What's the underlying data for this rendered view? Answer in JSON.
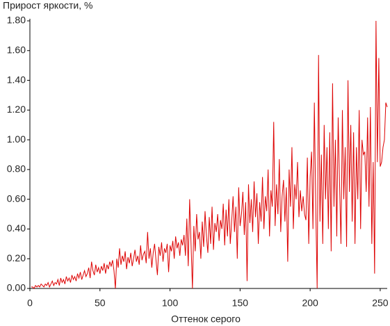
{
  "chart_data": {
    "type": "line",
    "title": "Прирост яркости, %",
    "x_label": "Оттенок серого",
    "x": [
      1,
      2,
      3,
      4,
      5,
      6,
      7,
      8,
      9,
      10,
      11,
      12,
      13,
      14,
      15,
      16,
      17,
      18,
      19,
      20,
      21,
      22,
      23,
      24,
      25,
      26,
      27,
      28,
      29,
      30,
      31,
      32,
      33,
      34,
      35,
      36,
      37,
      38,
      39,
      40,
      41,
      42,
      43,
      44,
      45,
      46,
      47,
      48,
      49,
      50,
      51,
      52,
      53,
      54,
      55,
      56,
      57,
      58,
      59,
      60,
      61,
      62,
      63,
      64,
      65,
      66,
      67,
      68,
      69,
      70,
      71,
      72,
      73,
      74,
      75,
      76,
      77,
      78,
      79,
      80,
      81,
      82,
      83,
      84,
      85,
      86,
      87,
      88,
      89,
      90,
      91,
      92,
      93,
      94,
      95,
      96,
      97,
      98,
      99,
      100,
      101,
      102,
      103,
      104,
      105,
      106,
      107,
      108,
      109,
      110,
      111,
      112,
      113,
      114,
      115,
      116,
      117,
      118,
      119,
      120,
      121,
      122,
      123,
      124,
      125,
      126,
      127,
      128,
      129,
      130,
      131,
      132,
      133,
      134,
      135,
      136,
      137,
      138,
      139,
      140,
      141,
      142,
      143,
      144,
      145,
      146,
      147,
      148,
      149,
      150,
      151,
      152,
      153,
      154,
      155,
      156,
      157,
      158,
      159,
      160,
      161,
      162,
      163,
      164,
      165,
      166,
      167,
      168,
      169,
      170,
      171,
      172,
      173,
      174,
      175,
      176,
      177,
      178,
      179,
      180,
      181,
      182,
      183,
      184,
      185,
      186,
      187,
      188,
      189,
      190,
      191,
      192,
      193,
      194,
      195,
      196,
      197,
      198,
      199,
      200,
      201,
      202,
      203,
      204,
      205,
      206,
      207,
      208,
      209,
      210,
      211,
      212,
      213,
      214,
      215,
      216,
      217,
      218,
      219,
      220,
      221,
      222,
      223,
      224,
      225,
      226,
      227,
      228,
      229,
      230,
      231,
      232,
      233,
      234,
      235,
      236,
      237,
      238,
      239,
      240,
      241,
      242,
      243,
      244,
      245,
      246,
      247,
      248,
      249,
      250,
      251,
      252,
      253,
      254,
      255
    ],
    "series": [
      {
        "color": "#dd0000",
        "values": [
          0.01,
          0.01,
          0,
          0.02,
          0.01,
          0.02,
          0.01,
          0.03,
          0.02,
          0.01,
          0.03,
          0.02,
          0.04,
          0.01,
          0.03,
          0.05,
          0.02,
          0.04,
          0.03,
          0.06,
          0.02,
          0.07,
          0.04,
          0.06,
          0.03,
          0.08,
          0.05,
          0.07,
          0.04,
          0.09,
          0.06,
          0.08,
          0.05,
          0.1,
          0.07,
          0.11,
          0.06,
          0.09,
          0.12,
          0.08,
          0.1,
          0.14,
          0.07,
          0.18,
          0.12,
          0.09,
          0.16,
          0.11,
          0.14,
          0.1,
          0.15,
          0.12,
          0.17,
          0.1,
          0.16,
          0.13,
          0.18,
          0.15,
          0.19,
          0.12,
          0,
          0.2,
          0.14,
          0.27,
          0.16,
          0.22,
          0.18,
          0.25,
          0.13,
          0.21,
          0.17,
          0.24,
          0.15,
          0.2,
          0.26,
          0.18,
          0.22,
          0.16,
          0.29,
          0.19,
          0.23,
          0.25,
          0.17,
          0.38,
          0.2,
          0.27,
          0.14,
          0.24,
          0.3,
          0.19,
          0.09,
          0.28,
          0.22,
          0.31,
          0.18,
          0.27,
          0.24,
          0.3,
          0.11,
          0.29,
          0.25,
          0.32,
          0.2,
          0.35,
          0.27,
          0.31,
          0.22,
          0.33,
          0.29,
          0.36,
          0.22,
          0.47,
          0.15,
          0.6,
          0.3,
          0,
          0.42,
          0.25,
          0.5,
          0.33,
          0.38,
          0.2,
          0.45,
          0.28,
          0.52,
          0.35,
          0.24,
          0.48,
          0.3,
          0.55,
          0.26,
          0.44,
          0.38,
          0.5,
          0.32,
          0.46,
          0.4,
          0.57,
          0.29,
          0.53,
          0.35,
          0.6,
          0.3,
          0.45,
          0.62,
          0.38,
          0.55,
          0.2,
          0.68,
          0.42,
          0.5,
          0.65,
          0.36,
          0.58,
          0.05,
          0.7,
          0.44,
          0.6,
          0.38,
          0.72,
          0.48,
          0.64,
          0.3,
          0.58,
          0.45,
          0.75,
          0.4,
          0.62,
          0.52,
          0.8,
          0.35,
          0.66,
          0.55,
          1.12,
          0.42,
          0.7,
          0.5,
          0.87,
          0.38,
          0.62,
          0.73,
          0.45,
          0.68,
          0.18,
          0.8,
          0.55,
          0.95,
          0.4,
          0.7,
          0.6,
          0.85,
          0.48,
          0.66,
          0.52,
          0.62,
          0.5,
          0.46,
          0.88,
          0.3,
          0.75,
          0.92,
          0.4,
          1.25,
          0.55,
          0,
          1.57,
          0.45,
          0.9,
          0.3,
          1.1,
          0.6,
          0.95,
          0.4,
          1.05,
          0.25,
          1.38,
          0.55,
          1.0,
          0.35,
          1.15,
          0.7,
          0.3,
          1.2,
          0.6,
          0.95,
          0.28,
          1.4,
          0.65,
          1.1,
          0.45,
          1.05,
          0.3,
          0.95,
          0.6,
          1.2,
          0.4,
          1.0,
          0.9,
          0.92,
          0.65,
          1.15,
          0.55,
          1.22,
          0.3,
          0.85,
          0.1,
          1.8,
          0.85,
          1.55,
          0.82,
          0.85,
          0.95,
          1.0,
          1.25,
          1.22
        ]
      }
    ],
    "xlim": [
      0,
      255
    ],
    "xticks": [
      0,
      50,
      100,
      150,
      200,
      250
    ],
    "ylim": [
      0,
      1.8
    ],
    "yticks": [
      {
        "value": 0,
        "label": "0.00"
      },
      {
        "value": 0.2,
        "label": "0.20"
      },
      {
        "value": 0.4,
        "label": "0.40"
      },
      {
        "value": 0.6,
        "label": "0.60"
      },
      {
        "value": 0.8,
        "label": "0.80"
      },
      {
        "value": 1.0,
        "label": "1.00"
      },
      {
        "value": 1.2,
        "label": "1.20"
      },
      {
        "value": 1.4,
        "label": "1.40"
      },
      {
        "value": 1.6,
        "label": "1.60"
      },
      {
        "value": 1.8,
        "label": "1.80"
      }
    ],
    "grid": false
  }
}
